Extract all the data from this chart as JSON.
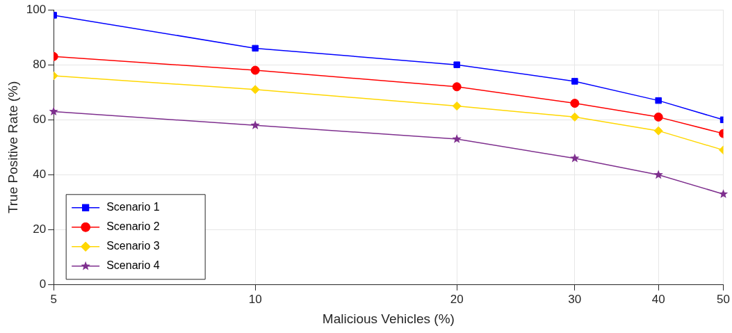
{
  "chart_data": {
    "type": "line",
    "xlabel": "Malicious Vehicles (%)",
    "ylabel": "True Positive Rate (%)",
    "x": [
      5,
      10,
      20,
      30,
      40,
      50
    ],
    "series": [
      {
        "name": "Scenario 1",
        "color": "#0000ff",
        "marker": "square",
        "values": [
          98,
          86,
          80,
          74,
          67,
          60
        ]
      },
      {
        "name": "Scenario 2",
        "color": "#ff0000",
        "marker": "circle",
        "values": [
          83,
          78,
          72,
          66,
          61,
          55
        ]
      },
      {
        "name": "Scenario 3",
        "color": "#ffd700",
        "marker": "diamond",
        "values": [
          76,
          71,
          65,
          61,
          56,
          49
        ]
      },
      {
        "name": "Scenario 4",
        "color": "#7e2f8e",
        "marker": "star",
        "values": [
          63,
          58,
          53,
          46,
          40,
          33
        ]
      }
    ],
    "log": "x",
    "xlim": [
      5,
      50
    ],
    "xticks": [
      5,
      10,
      20,
      30,
      40,
      50
    ],
    "ylim": [
      0,
      100
    ],
    "yticks": [
      0,
      20,
      40,
      60,
      80,
      100
    ],
    "grid": true,
    "legend": "bottom left",
    "line_style": "solid"
  }
}
